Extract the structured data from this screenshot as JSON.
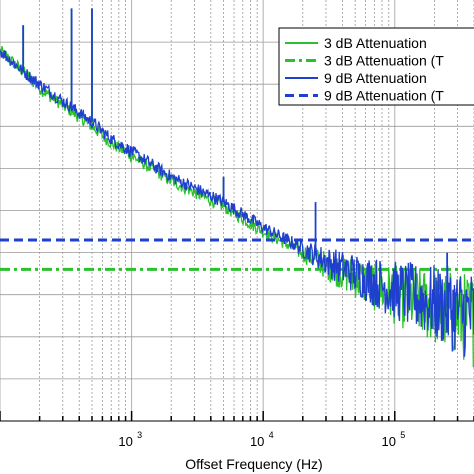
{
  "chart_data": {
    "type": "line",
    "xlabel": "Offset Frequency (Hz)",
    "ylabel": "",
    "x_scale": "log",
    "xlim": [
      100,
      400000
    ],
    "ylim": [
      -160,
      -60
    ],
    "grid": "on (major and minor vertical, major horizontal)",
    "legend_position": "top-right",
    "x_ticks": [
      {
        "base": "10",
        "exp": "3",
        "value": 1000
      },
      {
        "base": "10",
        "exp": "4",
        "value": 10000
      },
      {
        "base": "10",
        "exp": "5",
        "value": 100000
      }
    ],
    "series": [
      {
        "name": "3 dB Attenuation",
        "color": "#2bc12b",
        "style": "solid",
        "x": [
          100,
          150,
          200,
          300,
          500,
          700,
          1000,
          2000,
          5000,
          10000,
          20000,
          30000,
          50000,
          100000,
          200000,
          400000
        ],
        "y": [
          -72,
          -77,
          -81,
          -85,
          -90,
          -94,
          -97,
          -103,
          -109,
          -115,
          -120,
          -123,
          -126,
          -130,
          -133,
          -136
        ],
        "spikes": [
          {
            "x": 150,
            "y": -66
          },
          {
            "x": 350,
            "y": -62
          },
          {
            "x": 500,
            "y": -62
          },
          {
            "x": 1000,
            "y": -95
          },
          {
            "x": 5000,
            "y": -102
          }
        ]
      },
      {
        "name": "3 dB Attenuation (T",
        "color": "#2bc12b",
        "style": "dash-dot",
        "x": [
          100,
          400000
        ],
        "y": [
          -124,
          -124
        ]
      },
      {
        "name": "9 dB Attenuation",
        "color": "#1f3fcf",
        "style": "solid",
        "x": [
          100,
          150,
          200,
          300,
          500,
          700,
          1000,
          2000,
          5000,
          10000,
          20000,
          30000,
          50000,
          100000,
          200000,
          400000
        ],
        "y": [
          -72,
          -77,
          -80,
          -84,
          -89,
          -93,
          -96,
          -102,
          -108,
          -114,
          -119,
          -122,
          -125,
          -129,
          -132,
          -135
        ],
        "spikes": [
          {
            "x": 150,
            "y": -66
          },
          {
            "x": 350,
            "y": -62
          },
          {
            "x": 500,
            "y": -62
          },
          {
            "x": 1000,
            "y": -95
          },
          {
            "x": 5000,
            "y": -102
          },
          {
            "x": 25000,
            "y": -108
          },
          {
            "x": 250000,
            "y": -120
          }
        ]
      },
      {
        "name": "9 dB Attenuation (T",
        "color": "#1f3fcf",
        "style": "dashed",
        "x": [
          100,
          400000
        ],
        "y": [
          -117,
          -117
        ]
      }
    ]
  }
}
